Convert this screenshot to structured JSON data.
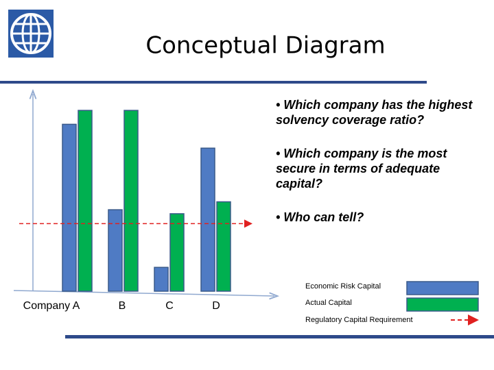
{
  "chart_data": {
    "type": "bar",
    "title": "Conceptual Diagram",
    "categories": [
      "Company  A",
      "B",
      "C",
      "D"
    ],
    "series": [
      {
        "name": "Economic Risk Capital",
        "color": "#4f7bc4",
        "values": [
          84,
          41,
          12,
          72
        ]
      },
      {
        "name": "Actual Capital",
        "color": "#00b050",
        "values": [
          91,
          91,
          39,
          45
        ]
      }
    ],
    "threshold": {
      "name": "Regulatory Capital Requirement",
      "value": 34,
      "color": "#e02020"
    },
    "ylim": [
      0,
      100
    ],
    "legend": "bottom-right",
    "annotations": [
      "• Which company has the highest solvency coverage ratio?",
      "• Which company is the most secure in terms of adequate capital?",
      "• Who can tell?"
    ]
  }
}
